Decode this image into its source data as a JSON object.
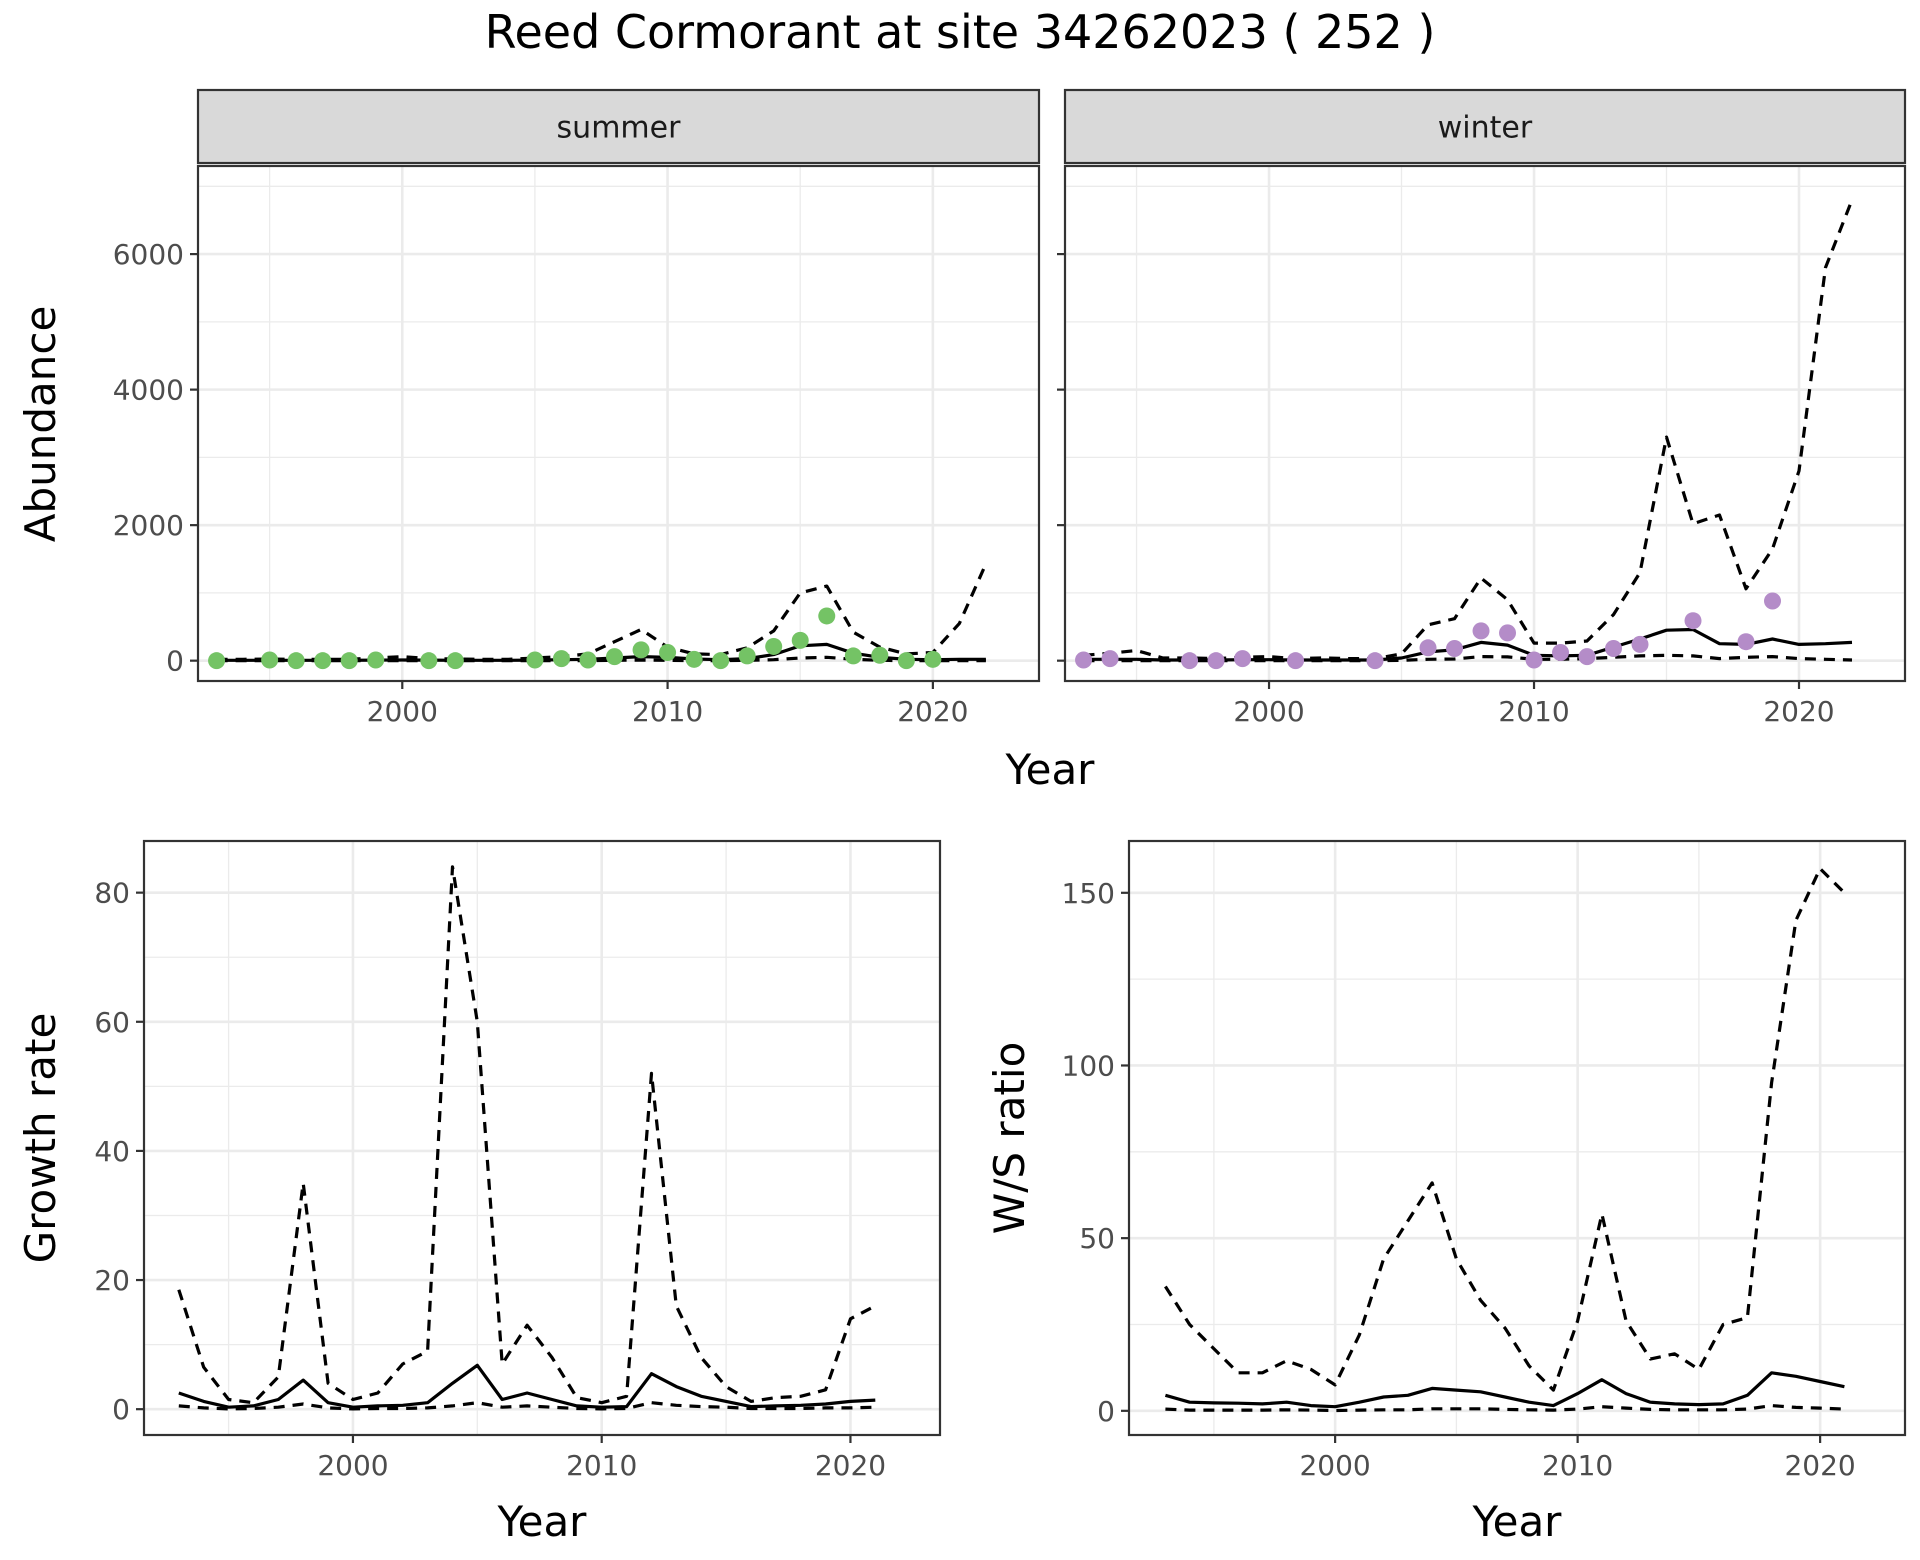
{
  "title": "Reed Cormorant at site 34262023 ( 252 )",
  "colors": {
    "summer_points": "#74c365",
    "winter_points": "#b48cc8",
    "lines": "#000000",
    "strip_fill": "#d9d9d9",
    "grid": "#ebebeb"
  },
  "chart_data": [
    {
      "type": "line",
      "facet": "summer",
      "xlabel": "Year",
      "ylabel": "Abundance",
      "xlim": [
        1992.3,
        2024.0
      ],
      "ylim": [
        -300,
        7300
      ],
      "x_ticks": [
        2000,
        2010,
        2020
      ],
      "y_ticks": [
        0,
        2000,
        4000,
        6000
      ],
      "grid": true,
      "points": {
        "x": [
          1993,
          1995,
          1996,
          1997,
          1998,
          1999,
          2001,
          2002,
          2005,
          2006,
          2007,
          2008,
          2009,
          2010,
          2011,
          2012,
          2013,
          2014,
          2015,
          2016,
          2017,
          2018,
          2019,
          2020
        ],
        "y": [
          0,
          10,
          0,
          0,
          0,
          10,
          0,
          0,
          10,
          30,
          10,
          60,
          160,
          120,
          20,
          0,
          70,
          210,
          300,
          660,
          70,
          80,
          0,
          20
        ]
      },
      "series": [
        {
          "name": "estimate",
          "style": "solid",
          "x": [
            1993,
            1994,
            1995,
            1996,
            1997,
            1998,
            1999,
            2000,
            2001,
            2002,
            2003,
            2004,
            2005,
            2006,
            2007,
            2008,
            2009,
            2010,
            2011,
            2012,
            2013,
            2014,
            2015,
            2016,
            2017,
            2018,
            2019,
            2020,
            2021,
            2022
          ],
          "y": [
            5,
            5,
            5,
            5,
            5,
            5,
            8,
            10,
            8,
            6,
            5,
            5,
            8,
            15,
            20,
            40,
            60,
            50,
            25,
            15,
            30,
            90,
            220,
            240,
            110,
            50,
            20,
            15,
            20,
            20
          ]
        },
        {
          "name": "upper",
          "style": "dashed",
          "x": [
            1993,
            1994,
            1995,
            1996,
            1997,
            1998,
            1999,
            2000,
            2001,
            2002,
            2003,
            2004,
            2005,
            2006,
            2007,
            2008,
            2009,
            2010,
            2011,
            2012,
            2013,
            2014,
            2015,
            2016,
            2017,
            2018,
            2019,
            2020,
            2021,
            2022
          ],
          "y": [
            20,
            20,
            25,
            20,
            20,
            20,
            40,
            60,
            30,
            25,
            20,
            20,
            40,
            60,
            100,
            280,
            460,
            200,
            100,
            90,
            190,
            440,
            1000,
            1100,
            420,
            200,
            100,
            120,
            550,
            1430
          ]
        },
        {
          "name": "lower",
          "style": "dashed",
          "x": [
            1993,
            1994,
            1995,
            1996,
            1997,
            1998,
            1999,
            2000,
            2001,
            2002,
            2003,
            2004,
            2005,
            2006,
            2007,
            2008,
            2009,
            2010,
            2011,
            2012,
            2013,
            2014,
            2015,
            2016,
            2017,
            2018,
            2019,
            2020,
            2021,
            2022
          ],
          "y": [
            0,
            0,
            0,
            0,
            0,
            0,
            0,
            0,
            0,
            0,
            0,
            0,
            0,
            0,
            0,
            5,
            8,
            5,
            0,
            0,
            5,
            15,
            40,
            50,
            20,
            5,
            0,
            0,
            0,
            0
          ]
        }
      ]
    },
    {
      "type": "line",
      "facet": "winter",
      "xlabel": "Year",
      "ylabel": "Abundance",
      "xlim": [
        1992.3,
        2024.0
      ],
      "ylim": [
        -300,
        7300
      ],
      "x_ticks": [
        2000,
        2010,
        2020
      ],
      "y_ticks": [
        0,
        2000,
        4000,
        6000
      ],
      "grid": true,
      "points": {
        "x": [
          1993,
          1994,
          1997,
          1998,
          1999,
          2001,
          2004,
          2006,
          2007,
          2008,
          2009,
          2010,
          2011,
          2012,
          2013,
          2014,
          2016,
          2018,
          2019
        ],
        "y": [
          10,
          30,
          0,
          0,
          30,
          0,
          0,
          190,
          180,
          440,
          410,
          10,
          120,
          60,
          180,
          240,
          590,
          280,
          880
        ]
      },
      "series": [
        {
          "name": "estimate",
          "style": "solid",
          "x": [
            1993,
            1994,
            1995,
            1996,
            1997,
            1998,
            1999,
            2000,
            2001,
            2002,
            2003,
            2004,
            2005,
            2006,
            2007,
            2008,
            2009,
            2010,
            2011,
            2012,
            2013,
            2014,
            2015,
            2016,
            2017,
            2018,
            2019,
            2020,
            2021,
            2022
          ],
          "y": [
            20,
            20,
            20,
            10,
            10,
            10,
            15,
            15,
            10,
            10,
            10,
            10,
            40,
            130,
            160,
            270,
            230,
            80,
            70,
            80,
            200,
            320,
            450,
            460,
            250,
            240,
            320,
            240,
            250,
            270
          ]
        },
        {
          "name": "upper",
          "style": "dashed",
          "x": [
            1993,
            1994,
            1995,
            1996,
            1997,
            1998,
            1999,
            2000,
            2001,
            2002,
            2003,
            2004,
            2005,
            2006,
            2007,
            2008,
            2009,
            2010,
            2011,
            2012,
            2013,
            2014,
            2015,
            2016,
            2017,
            2018,
            2019,
            2020,
            2021,
            2022
          ],
          "y": [
            80,
            110,
            150,
            40,
            40,
            30,
            50,
            60,
            30,
            40,
            30,
            30,
            100,
            530,
            620,
            1220,
            900,
            260,
            260,
            290,
            680,
            1300,
            3300,
            2020,
            2150,
            1060,
            1650,
            2800,
            5800,
            6800
          ]
        },
        {
          "name": "lower",
          "style": "dashed",
          "x": [
            1993,
            1994,
            1995,
            1996,
            1997,
            1998,
            1999,
            2000,
            2001,
            2002,
            2003,
            2004,
            2005,
            2006,
            2007,
            2008,
            2009,
            2010,
            2011,
            2012,
            2013,
            2014,
            2015,
            2016,
            2017,
            2018,
            2019,
            2020,
            2021,
            2022
          ],
          "y": [
            0,
            0,
            0,
            0,
            0,
            0,
            0,
            0,
            0,
            0,
            0,
            0,
            5,
            20,
            25,
            60,
            55,
            20,
            20,
            30,
            50,
            70,
            80,
            70,
            30,
            50,
            60,
            30,
            20,
            10
          ]
        }
      ]
    },
    {
      "type": "line",
      "xlabel": "Year",
      "ylabel": "Growth rate",
      "xlim": [
        1991.6,
        2023.6
      ],
      "ylim": [
        -4,
        88
      ],
      "x_ticks": [
        2000,
        2010,
        2020
      ],
      "y_ticks": [
        0,
        20,
        40,
        60,
        80
      ],
      "grid": true,
      "series": [
        {
          "name": "estimate",
          "style": "solid",
          "x": [
            1993,
            1994,
            1995,
            1996,
            1997,
            1998,
            1999,
            2000,
            2001,
            2002,
            2003,
            2004,
            2005,
            2006,
            2007,
            2008,
            2009,
            2010,
            2011,
            2012,
            2013,
            2014,
            2015,
            2016,
            2017,
            2018,
            2019,
            2020,
            2021
          ],
          "y": [
            2.5,
            1.2,
            0.3,
            0.5,
            1.5,
            4.5,
            1.0,
            0.3,
            0.5,
            0.6,
            1.0,
            4.0,
            6.8,
            1.5,
            2.5,
            1.5,
            0.5,
            0.3,
            0.4,
            5.5,
            3.5,
            2.0,
            1.2,
            0.4,
            0.5,
            0.6,
            0.8,
            1.2,
            1.4
          ]
        },
        {
          "name": "upper",
          "style": "dashed",
          "x": [
            1993,
            1994,
            1995,
            1996,
            1997,
            1998,
            1999,
            2000,
            2001,
            2002,
            2003,
            2004,
            2005,
            2006,
            2007,
            2008,
            2009,
            2010,
            2011,
            2012,
            2013,
            2014,
            2015,
            2016,
            2017,
            2018,
            2019,
            2020,
            2021
          ],
          "y": [
            18.5,
            6.5,
            1.5,
            1.0,
            5.0,
            35.0,
            4.0,
            1.5,
            2.5,
            7.0,
            9.0,
            84.0,
            60.0,
            7.0,
            13.0,
            8.0,
            1.8,
            1.0,
            2.0,
            52.0,
            16.0,
            8.0,
            3.5,
            1.2,
            1.8,
            2.0,
            3.0,
            14.0,
            16.0
          ]
        },
        {
          "name": "lower",
          "style": "dashed",
          "x": [
            1993,
            1994,
            1995,
            1996,
            1997,
            1998,
            1999,
            2000,
            2001,
            2002,
            2003,
            2004,
            2005,
            2006,
            2007,
            2008,
            2009,
            2010,
            2011,
            2012,
            2013,
            2014,
            2015,
            2016,
            2017,
            2018,
            2019,
            2020,
            2021
          ],
          "y": [
            0.5,
            0.2,
            0.05,
            0.1,
            0.3,
            0.8,
            0.2,
            0.05,
            0.1,
            0.1,
            0.2,
            0.5,
            1.0,
            0.3,
            0.5,
            0.3,
            0.1,
            0.05,
            0.1,
            1.0,
            0.6,
            0.4,
            0.3,
            0.1,
            0.1,
            0.1,
            0.2,
            0.2,
            0.3
          ]
        }
      ]
    },
    {
      "type": "line",
      "xlabel": "Year",
      "ylabel": "W/S ratio",
      "xlim": [
        1991.5,
        2023.5
      ],
      "ylim": [
        -7,
        165
      ],
      "x_ticks": [
        2000,
        2010,
        2020
      ],
      "y_ticks": [
        0,
        50,
        100,
        150
      ],
      "grid": true,
      "series": [
        {
          "name": "estimate",
          "style": "solid",
          "x": [
            1993,
            1994,
            1995,
            1996,
            1997,
            1998,
            1999,
            2000,
            2001,
            2002,
            2003,
            2004,
            2005,
            2006,
            2007,
            2008,
            2009,
            2010,
            2011,
            2012,
            2013,
            2014,
            2015,
            2016,
            2017,
            2018,
            2019,
            2020,
            2021
          ],
          "y": [
            4.5,
            2.5,
            2.3,
            2.2,
            2.0,
            2.5,
            1.5,
            1.2,
            2.5,
            4.0,
            4.5,
            6.5,
            6.0,
            5.5,
            4.0,
            2.5,
            1.5,
            5.0,
            9.0,
            5.0,
            2.5,
            2.0,
            1.8,
            2.0,
            4.5,
            11.0,
            10.0,
            8.5,
            7.0
          ]
        },
        {
          "name": "upper",
          "style": "dashed",
          "x": [
            1993,
            1994,
            1995,
            1996,
            1997,
            1998,
            1999,
            2000,
            2001,
            2002,
            2003,
            2004,
            2005,
            2006,
            2007,
            2008,
            2009,
            2010,
            2011,
            2012,
            2013,
            2014,
            2015,
            2016,
            2017,
            2018,
            2019,
            2020,
            2021
          ],
          "y": [
            36.0,
            25.0,
            18.0,
            11.0,
            11.0,
            14.5,
            12.0,
            7.5,
            22.0,
            44.0,
            55.0,
            66.0,
            44.0,
            32.0,
            24.0,
            13.0,
            6.0,
            26.0,
            57.0,
            26.0,
            15.0,
            16.5,
            12.0,
            25.0,
            27.0,
            95.0,
            142.0,
            157.0,
            150.0
          ]
        },
        {
          "name": "lower",
          "style": "dashed",
          "x": [
            1993,
            1994,
            1995,
            1996,
            1997,
            1998,
            1999,
            2000,
            2001,
            2002,
            2003,
            2004,
            2005,
            2006,
            2007,
            2008,
            2009,
            2010,
            2011,
            2012,
            2013,
            2014,
            2015,
            2016,
            2017,
            2018,
            2019,
            2020,
            2021
          ],
          "y": [
            0.5,
            0.2,
            0.2,
            0.2,
            0.2,
            0.3,
            0.2,
            0.1,
            0.2,
            0.3,
            0.3,
            0.6,
            0.6,
            0.6,
            0.4,
            0.3,
            0.2,
            0.5,
            1.2,
            0.8,
            0.4,
            0.3,
            0.3,
            0.3,
            0.5,
            1.5,
            1.0,
            0.8,
            0.5
          ]
        }
      ]
    }
  ]
}
